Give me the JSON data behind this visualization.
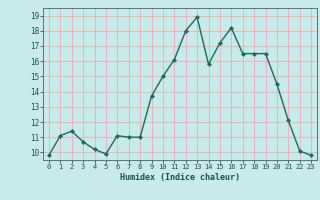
{
  "x": [
    0,
    1,
    2,
    3,
    4,
    5,
    6,
    7,
    8,
    9,
    10,
    11,
    12,
    13,
    14,
    15,
    16,
    17,
    18,
    19,
    20,
    21,
    22,
    23
  ],
  "y": [
    9.8,
    11.1,
    11.4,
    10.7,
    10.2,
    9.9,
    11.1,
    11.0,
    11.0,
    13.7,
    15.0,
    16.1,
    18.0,
    18.9,
    15.8,
    17.2,
    18.2,
    16.5,
    16.5,
    16.5,
    14.5,
    12.1,
    10.1,
    9.8
  ],
  "xlabel": "Humidex (Indice chaleur)",
  "bg_color": "#c8eaea",
  "line_color": "#1a6b5a",
  "marker_color": "#1a6b5a",
  "grid_color": "#e8b0b0",
  "ylim": [
    9.5,
    19.5
  ],
  "xlim": [
    -0.5,
    23.5
  ],
  "yticks": [
    10,
    11,
    12,
    13,
    14,
    15,
    16,
    17,
    18,
    19
  ],
  "xticks": [
    0,
    1,
    2,
    3,
    4,
    5,
    6,
    7,
    8,
    9,
    10,
    11,
    12,
    13,
    14,
    15,
    16,
    17,
    18,
    19,
    20,
    21,
    22,
    23
  ]
}
